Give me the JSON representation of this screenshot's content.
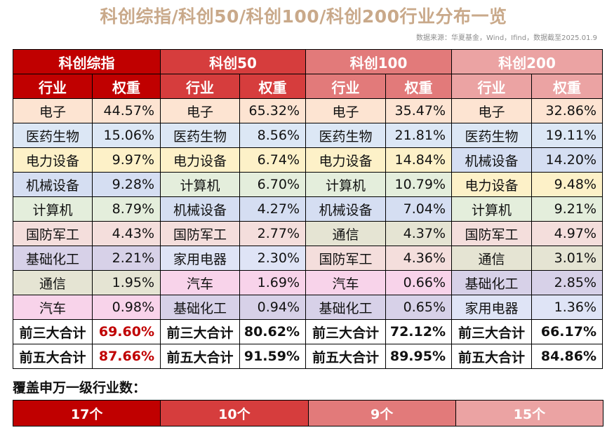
{
  "title": "科创综指/科创50/科创100/科创200行业分布一览",
  "source": "数据来源：华夏基金，Wind，Ifind，数据截至2025.01.9",
  "groups": [
    "科创综指",
    "科创50",
    "科创100",
    "科创200"
  ],
  "col_headers": {
    "industry": "行业",
    "weight": "权重"
  },
  "rows": [
    [
      {
        "i": "电子",
        "w": "44.57%",
        "c": "c-elec"
      },
      {
        "i": "电子",
        "w": "65.32%",
        "c": "c-elec"
      },
      {
        "i": "电子",
        "w": "35.47%",
        "c": "c-elec"
      },
      {
        "i": "电子",
        "w": "32.86%",
        "c": "c-elec"
      }
    ],
    [
      {
        "i": "医药生物",
        "w": "15.06%",
        "c": "c-med"
      },
      {
        "i": "医药生物",
        "w": "8.56%",
        "c": "c-med"
      },
      {
        "i": "医药生物",
        "w": "21.81%",
        "c": "c-med"
      },
      {
        "i": "医药生物",
        "w": "19.11%",
        "c": "c-med"
      }
    ],
    [
      {
        "i": "电力设备",
        "w": "9.97%",
        "c": "c-pow"
      },
      {
        "i": "电力设备",
        "w": "6.74%",
        "c": "c-pow"
      },
      {
        "i": "电力设备",
        "w": "14.84%",
        "c": "c-pow"
      },
      {
        "i": "机械设备",
        "w": "14.20%",
        "c": "c-mech"
      }
    ],
    [
      {
        "i": "机械设备",
        "w": "9.28%",
        "c": "c-mech"
      },
      {
        "i": "计算机",
        "w": "6.70%",
        "c": "c-comp"
      },
      {
        "i": "计算机",
        "w": "10.79%",
        "c": "c-comp"
      },
      {
        "i": "电力设备",
        "w": "9.48%",
        "c": "c-pow"
      }
    ],
    [
      {
        "i": "计算机",
        "w": "8.79%",
        "c": "c-comp"
      },
      {
        "i": "机械设备",
        "w": "4.27%",
        "c": "c-mech"
      },
      {
        "i": "机械设备",
        "w": "7.04%",
        "c": "c-mech"
      },
      {
        "i": "计算机",
        "w": "9.21%",
        "c": "c-comp"
      }
    ],
    [
      {
        "i": "国防军工",
        "w": "4.43%",
        "c": "c-def"
      },
      {
        "i": "国防军工",
        "w": "2.77%",
        "c": "c-def"
      },
      {
        "i": "通信",
        "w": "4.37%",
        "c": "c-tel"
      },
      {
        "i": "国防军工",
        "w": "4.97%",
        "c": "c-def"
      }
    ],
    [
      {
        "i": "基础化工",
        "w": "2.21%",
        "c": "c-chem"
      },
      {
        "i": "家用电器",
        "w": "2.30%",
        "c": "c-home"
      },
      {
        "i": "国防军工",
        "w": "4.36%",
        "c": "c-def"
      },
      {
        "i": "通信",
        "w": "3.01%",
        "c": "c-tel"
      }
    ],
    [
      {
        "i": "通信",
        "w": "1.95%",
        "c": "c-tel"
      },
      {
        "i": "汽车",
        "w": "1.69%",
        "c": "c-car"
      },
      {
        "i": "汽车",
        "w": "0.66%",
        "c": "c-car"
      },
      {
        "i": "基础化工",
        "w": "2.85%",
        "c": "c-chem"
      }
    ],
    [
      {
        "i": "汽车",
        "w": "0.98%",
        "c": "c-car"
      },
      {
        "i": "基础化工",
        "w": "0.94%",
        "c": "c-chem"
      },
      {
        "i": "基础化工",
        "w": "0.65%",
        "c": "c-chem"
      },
      {
        "i": "家用电器",
        "w": "1.36%",
        "c": "c-home"
      }
    ]
  ],
  "summary": [
    {
      "label": "前三大合计",
      "values": [
        "69.60%",
        "80.62%",
        "72.12%",
        "66.17%"
      ]
    },
    {
      "label": "前五大合计",
      "values": [
        "87.66%",
        "91.59%",
        "89.95%",
        "84.86%"
      ]
    }
  ],
  "coverage_label": "覆盖申万一级行业数：",
  "coverage": [
    "17个",
    "10个",
    "9个",
    "15个"
  ]
}
